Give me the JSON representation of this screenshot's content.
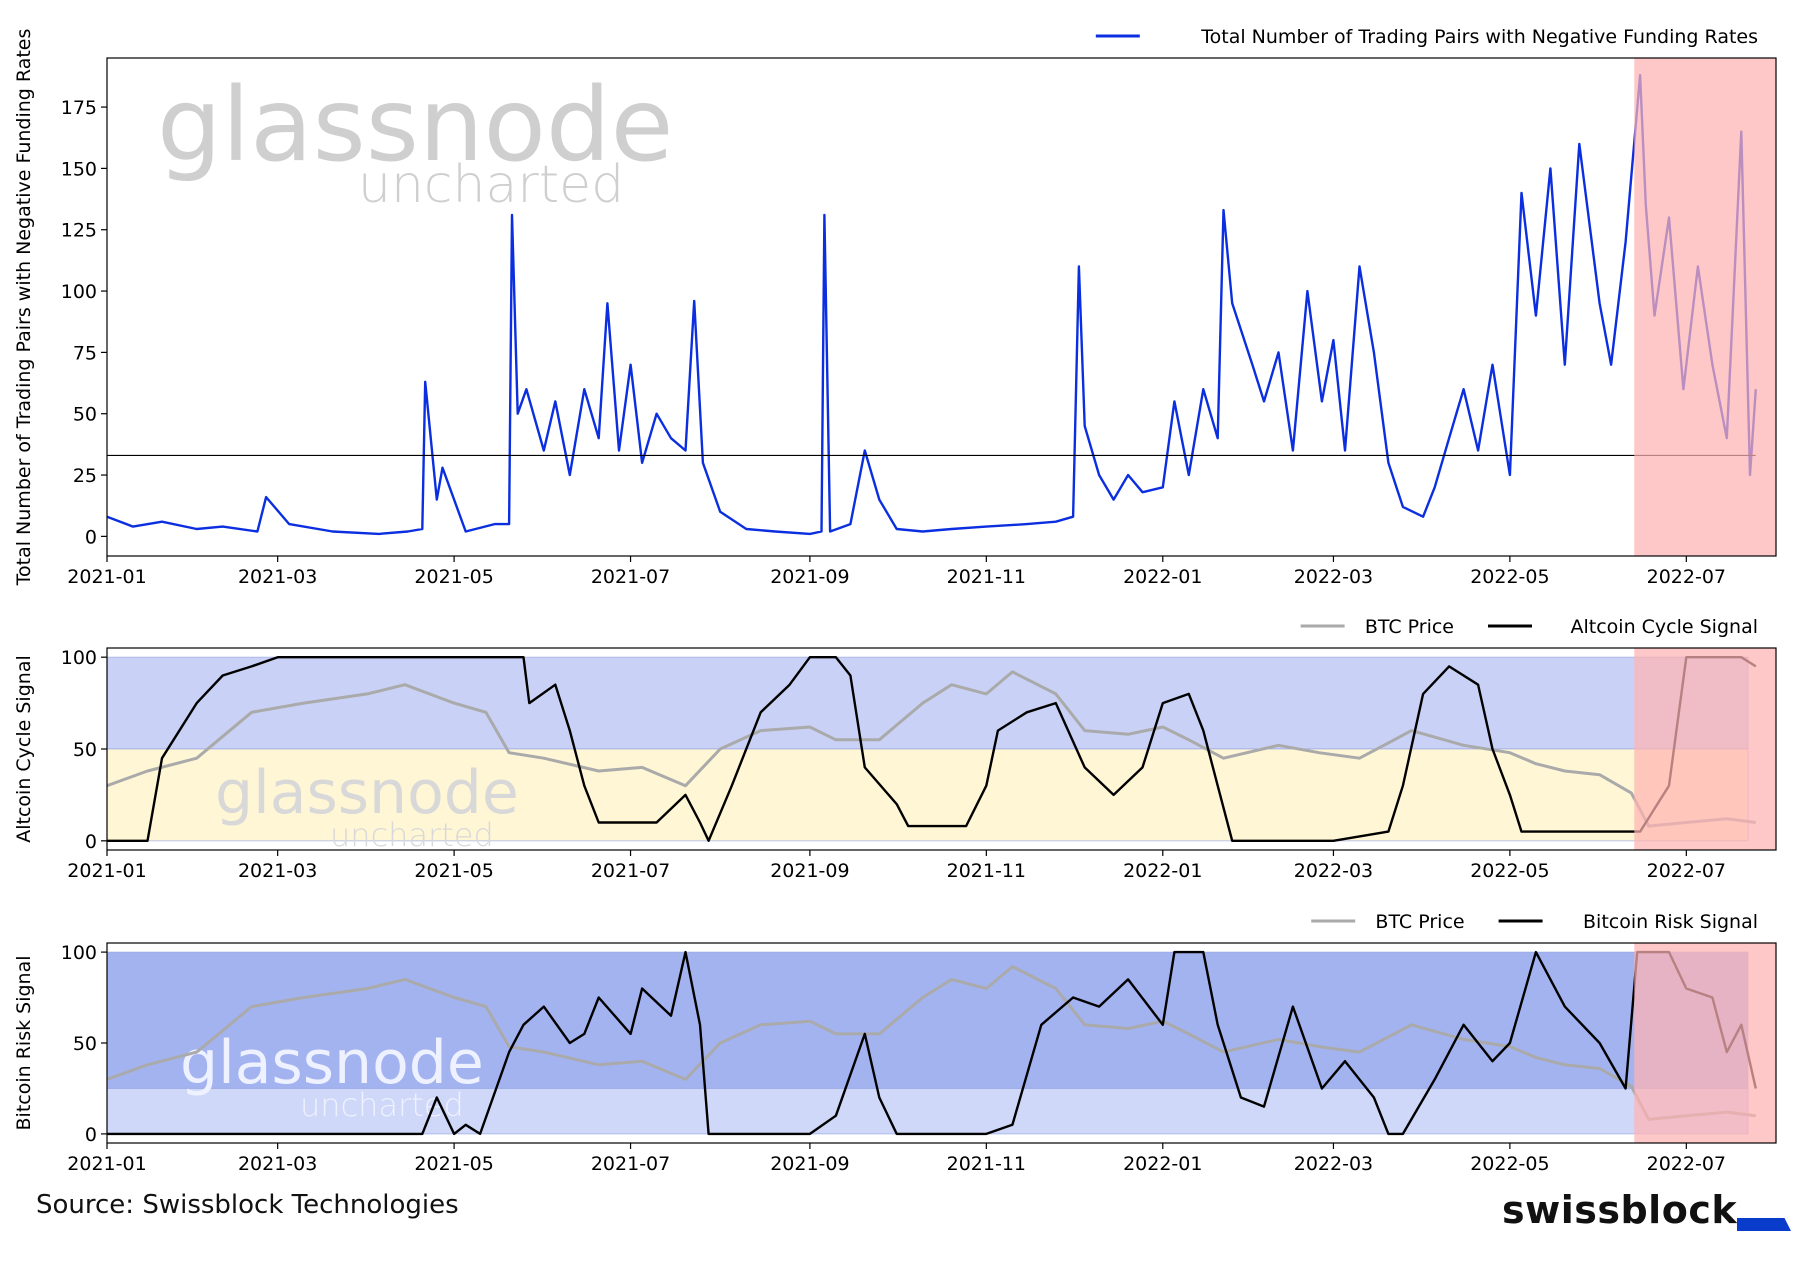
{
  "source_text": "Source: Swissblock Technologies",
  "brand_name": "swissblock",
  "brand_color": "#0a3ccc",
  "watermark": {
    "word": "glassnode",
    "sub": "uncharted"
  },
  "colors": {
    "blue_line": "#0b2fe0",
    "black_line": "#000000",
    "btc_price": "#aaaaaa",
    "highlight": "#ffb3b3",
    "band_blue": "#c9d2f6",
    "band_yellow": "#fff6d5",
    "risk_band_dark": "#a3b3f0",
    "risk_band_light": "#cfd8f8"
  },
  "x_axis": {
    "start": "2021-01-01",
    "end": "2022-08-01",
    "ticks": [
      "2021-01",
      "2021-03",
      "2021-05",
      "2021-07",
      "2021-09",
      "2021-11",
      "2022-01",
      "2022-03",
      "2022-05",
      "2022-07"
    ]
  },
  "highlight_range": [
    "2022-06-13",
    "2022-08-01"
  ],
  "chart_data": [
    {
      "type": "line",
      "ylabel": "Total Number of Trading Pairs with Negative Funding Rates",
      "ylim": [
        -8,
        195
      ],
      "yticks": [
        0,
        25,
        50,
        75,
        100,
        125,
        150,
        175
      ],
      "legend": [
        "Total Number of Trading Pairs with Negative Funding Rates"
      ],
      "threshold": 33,
      "series": [
        {
          "name": "Total Number of Trading Pairs with Negative Funding Rates",
          "x": [
            "2021-01-01",
            "2021-01-10",
            "2021-01-20",
            "2021-02-01",
            "2021-02-10",
            "2021-02-22",
            "2021-02-25",
            "2021-03-05",
            "2021-03-20",
            "2021-04-05",
            "2021-04-15",
            "2021-04-20",
            "2021-04-21",
            "2021-04-25",
            "2021-04-27",
            "2021-05-05",
            "2021-05-15",
            "2021-05-20",
            "2021-05-21",
            "2021-05-23",
            "2021-05-26",
            "2021-06-01",
            "2021-06-05",
            "2021-06-10",
            "2021-06-15",
            "2021-06-20",
            "2021-06-23",
            "2021-06-27",
            "2021-07-01",
            "2021-07-05",
            "2021-07-10",
            "2021-07-15",
            "2021-07-20",
            "2021-07-23",
            "2021-07-26",
            "2021-08-01",
            "2021-08-10",
            "2021-08-20",
            "2021-09-01",
            "2021-09-05",
            "2021-09-06",
            "2021-09-08",
            "2021-09-15",
            "2021-09-20",
            "2021-09-25",
            "2021-10-01",
            "2021-10-10",
            "2021-10-20",
            "2021-11-01",
            "2021-11-15",
            "2021-11-25",
            "2021-12-01",
            "2021-12-03",
            "2021-12-05",
            "2021-12-10",
            "2021-12-15",
            "2021-12-20",
            "2021-12-25",
            "2022-01-01",
            "2022-01-05",
            "2022-01-10",
            "2022-01-15",
            "2022-01-20",
            "2022-01-22",
            "2022-01-25",
            "2022-02-01",
            "2022-02-05",
            "2022-02-10",
            "2022-02-15",
            "2022-02-20",
            "2022-02-25",
            "2022-03-01",
            "2022-03-05",
            "2022-03-10",
            "2022-03-15",
            "2022-03-20",
            "2022-03-25",
            "2022-04-01",
            "2022-04-05",
            "2022-04-10",
            "2022-04-15",
            "2022-04-20",
            "2022-04-25",
            "2022-05-01",
            "2022-05-05",
            "2022-05-10",
            "2022-05-15",
            "2022-05-20",
            "2022-05-25",
            "2022-06-01",
            "2022-06-05",
            "2022-06-10",
            "2022-06-15",
            "2022-06-17",
            "2022-06-20",
            "2022-06-25",
            "2022-06-30",
            "2022-07-05",
            "2022-07-10",
            "2022-07-15",
            "2022-07-20",
            "2022-07-23",
            "2022-07-25"
          ],
          "values": [
            8,
            4,
            6,
            3,
            4,
            2,
            16,
            5,
            2,
            1,
            2,
            3,
            63,
            15,
            28,
            2,
            5,
            5,
            131,
            50,
            60,
            35,
            55,
            25,
            60,
            40,
            95,
            35,
            70,
            30,
            50,
            40,
            35,
            96,
            30,
            10,
            3,
            2,
            1,
            2,
            131,
            2,
            5,
            35,
            15,
            3,
            2,
            3,
            4,
            5,
            6,
            8,
            110,
            45,
            25,
            15,
            25,
            18,
            20,
            55,
            25,
            60,
            40,
            133,
            95,
            70,
            55,
            75,
            35,
            100,
            55,
            80,
            35,
            110,
            75,
            30,
            12,
            8,
            20,
            40,
            60,
            35,
            70,
            25,
            140,
            90,
            150,
            70,
            160,
            95,
            70,
            120,
            188,
            135,
            90,
            130,
            60,
            110,
            70,
            40,
            165,
            25,
            60
          ]
        }
      ]
    },
    {
      "type": "line",
      "ylabel": "Altcoin Cycle Signal",
      "ylim": [
        -5,
        105
      ],
      "yticks": [
        0,
        50,
        100
      ],
      "legend": [
        "BTC Price",
        "Altcoin Cycle Signal"
      ],
      "bands": [
        {
          "from": 50,
          "to": 100,
          "color": "blue"
        },
        {
          "from": 0,
          "to": 50,
          "color": "yellow"
        }
      ],
      "series": [
        {
          "name": "Altcoin Cycle Signal",
          "x": [
            "2021-01-01",
            "2021-01-15",
            "2021-01-20",
            "2021-02-01",
            "2021-02-10",
            "2021-02-20",
            "2021-03-01",
            "2021-04-01",
            "2021-05-01",
            "2021-05-25",
            "2021-05-27",
            "2021-06-05",
            "2021-06-10",
            "2021-06-15",
            "2021-06-20",
            "2021-07-01",
            "2021-07-10",
            "2021-07-20",
            "2021-07-25",
            "2021-07-28",
            "2021-08-05",
            "2021-08-15",
            "2021-08-25",
            "2021-09-01",
            "2021-09-10",
            "2021-09-15",
            "2021-09-20",
            "2021-10-01",
            "2021-10-05",
            "2021-10-15",
            "2021-10-25",
            "2021-11-01",
            "2021-11-05",
            "2021-11-15",
            "2021-11-25",
            "2021-12-05",
            "2021-12-15",
            "2021-12-25",
            "2022-01-01",
            "2022-01-10",
            "2022-01-15",
            "2022-01-20",
            "2022-01-25",
            "2022-02-10",
            "2022-03-01",
            "2022-03-20",
            "2022-03-25",
            "2022-04-01",
            "2022-04-10",
            "2022-04-20",
            "2022-04-25",
            "2022-05-01",
            "2022-05-05",
            "2022-05-15",
            "2022-06-01",
            "2022-06-10",
            "2022-06-15",
            "2022-06-25",
            "2022-07-01",
            "2022-07-10",
            "2022-07-20",
            "2022-07-25"
          ],
          "values": [
            0,
            0,
            45,
            75,
            90,
            95,
            100,
            100,
            100,
            100,
            75,
            85,
            60,
            30,
            10,
            10,
            10,
            25,
            10,
            0,
            30,
            70,
            85,
            100,
            100,
            90,
            40,
            20,
            8,
            8,
            8,
            30,
            60,
            70,
            75,
            40,
            25,
            40,
            75,
            80,
            60,
            30,
            0,
            0,
            0,
            5,
            30,
            80,
            95,
            85,
            50,
            25,
            5,
            5,
            5,
            5,
            5,
            30,
            100,
            100,
            100,
            95
          ]
        },
        {
          "name": "BTC Price",
          "x": [
            "2021-01-01",
            "2021-01-15",
            "2021-02-01",
            "2021-02-20",
            "2021-03-10",
            "2021-04-01",
            "2021-04-14",
            "2021-05-01",
            "2021-05-12",
            "2021-05-20",
            "2021-06-01",
            "2021-06-20",
            "2021-07-05",
            "2021-07-20",
            "2021-08-01",
            "2021-08-15",
            "2021-09-01",
            "2021-09-10",
            "2021-09-25",
            "2021-10-10",
            "2021-10-20",
            "2021-11-01",
            "2021-11-10",
            "2021-11-25",
            "2021-12-05",
            "2021-12-20",
            "2022-01-01",
            "2022-01-10",
            "2022-01-22",
            "2022-02-10",
            "2022-02-24",
            "2022-03-10",
            "2022-03-28",
            "2022-04-15",
            "2022-05-01",
            "2022-05-10",
            "2022-05-20",
            "2022-06-01",
            "2022-06-12",
            "2022-06-18",
            "2022-07-01",
            "2022-07-15",
            "2022-07-25"
          ],
          "values": [
            30,
            38,
            45,
            70,
            75,
            80,
            85,
            75,
            70,
            48,
            45,
            38,
            40,
            30,
            50,
            60,
            62,
            55,
            55,
            75,
            85,
            80,
            92,
            80,
            60,
            58,
            62,
            55,
            45,
            52,
            48,
            45,
            60,
            52,
            48,
            42,
            38,
            36,
            26,
            8,
            10,
            12,
            10
          ]
        }
      ]
    },
    {
      "type": "line",
      "ylabel": "Bitcoin Risk Signal",
      "ylim": [
        -5,
        105
      ],
      "yticks": [
        0,
        50,
        100
      ],
      "legend": [
        "BTC Price",
        "Bitcoin Risk Signal"
      ],
      "bands": [
        {
          "from": 25,
          "to": 100,
          "color": "dark-blue"
        },
        {
          "from": 0,
          "to": 25,
          "color": "light-blue"
        }
      ],
      "series": [
        {
          "name": "Bitcoin Risk Signal",
          "x": [
            "2021-01-01",
            "2021-04-20",
            "2021-04-25",
            "2021-05-01",
            "2021-05-05",
            "2021-05-10",
            "2021-05-20",
            "2021-05-25",
            "2021-06-01",
            "2021-06-10",
            "2021-06-15",
            "2021-06-20",
            "2021-07-01",
            "2021-07-05",
            "2021-07-15",
            "2021-07-20",
            "2021-07-25",
            "2021-07-28",
            "2021-08-15",
            "2021-09-01",
            "2021-09-10",
            "2021-09-20",
            "2021-09-25",
            "2021-10-01",
            "2021-11-01",
            "2021-11-10",
            "2021-11-20",
            "2021-12-01",
            "2021-12-10",
            "2021-12-20",
            "2022-01-01",
            "2022-01-05",
            "2022-01-15",
            "2022-01-20",
            "2022-01-28",
            "2022-02-05",
            "2022-02-15",
            "2022-02-25",
            "2022-03-05",
            "2022-03-15",
            "2022-03-20",
            "2022-03-25",
            "2022-04-05",
            "2022-04-15",
            "2022-04-25",
            "2022-05-01",
            "2022-05-10",
            "2022-05-20",
            "2022-06-01",
            "2022-06-10",
            "2022-06-14",
            "2022-06-25",
            "2022-07-01",
            "2022-07-10",
            "2022-07-15",
            "2022-07-20",
            "2022-07-25"
          ],
          "values": [
            0,
            0,
            20,
            0,
            5,
            0,
            45,
            60,
            70,
            50,
            55,
            75,
            55,
            80,
            65,
            100,
            60,
            0,
            0,
            0,
            10,
            55,
            20,
            0,
            0,
            5,
            60,
            75,
            70,
            85,
            60,
            100,
            100,
            60,
            20,
            15,
            70,
            25,
            40,
            20,
            0,
            0,
            30,
            60,
            40,
            50,
            100,
            70,
            50,
            25,
            100,
            100,
            80,
            75,
            45,
            60,
            25
          ]
        },
        {
          "name": "BTC Price",
          "x": [
            "2021-01-01",
            "2021-01-15",
            "2021-02-01",
            "2021-02-20",
            "2021-03-10",
            "2021-04-01",
            "2021-04-14",
            "2021-05-01",
            "2021-05-12",
            "2021-05-20",
            "2021-06-01",
            "2021-06-20",
            "2021-07-05",
            "2021-07-20",
            "2021-08-01",
            "2021-08-15",
            "2021-09-01",
            "2021-09-10",
            "2021-09-25",
            "2021-10-10",
            "2021-10-20",
            "2021-11-01",
            "2021-11-10",
            "2021-11-25",
            "2021-12-05",
            "2021-12-20",
            "2022-01-01",
            "2022-01-10",
            "2022-01-22",
            "2022-02-10",
            "2022-02-24",
            "2022-03-10",
            "2022-03-28",
            "2022-04-15",
            "2022-05-01",
            "2022-05-10",
            "2022-05-20",
            "2022-06-01",
            "2022-06-12",
            "2022-06-18",
            "2022-07-01",
            "2022-07-15",
            "2022-07-25"
          ],
          "values": [
            30,
            38,
            45,
            70,
            75,
            80,
            85,
            75,
            70,
            48,
            45,
            38,
            40,
            30,
            50,
            60,
            62,
            55,
            55,
            75,
            85,
            80,
            92,
            80,
            60,
            58,
            62,
            55,
            45,
            52,
            48,
            45,
            60,
            52,
            48,
            42,
            38,
            36,
            26,
            8,
            10,
            12,
            10
          ]
        }
      ]
    }
  ]
}
